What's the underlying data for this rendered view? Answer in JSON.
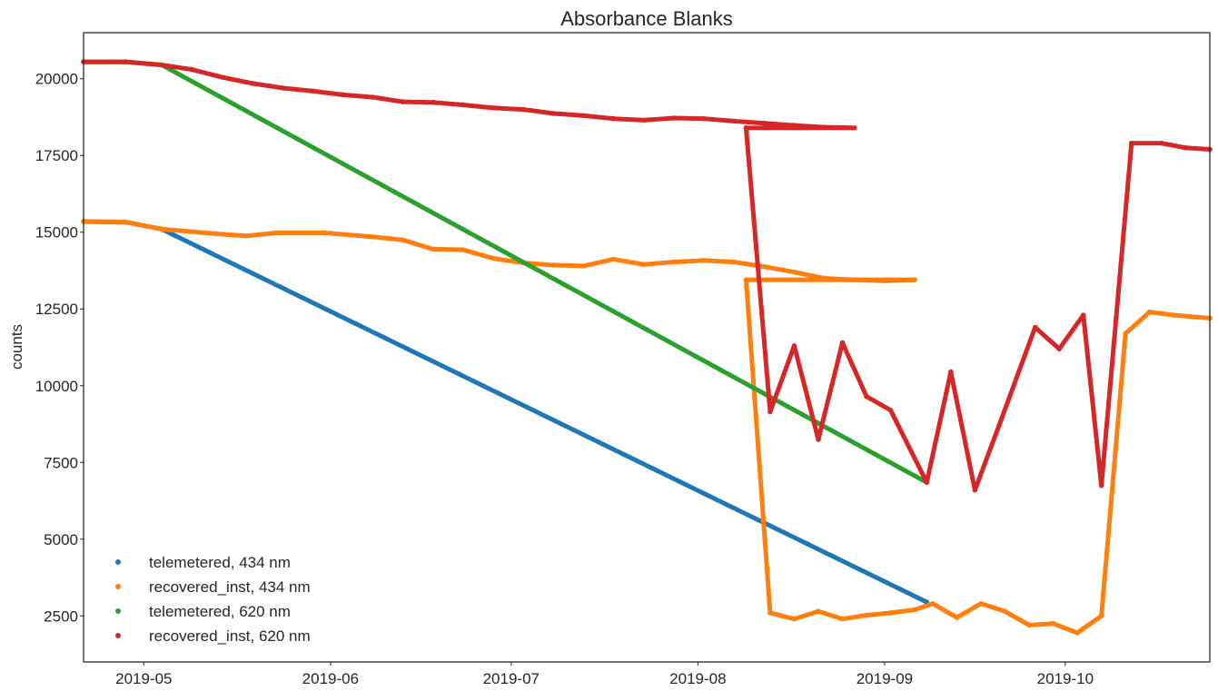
{
  "chart_data": {
    "type": "scatter",
    "title": "Absorbance Blanks",
    "xlabel": "",
    "ylabel": "counts",
    "x_axis_type": "date",
    "xlim": [
      "2019-04-21",
      "2019-10-25"
    ],
    "ylim": [
      1000,
      21500
    ],
    "x_tick_labels": [
      "2019-05",
      "2019-06",
      "2019-07",
      "2019-08",
      "2019-09",
      "2019-10"
    ],
    "x_tick_dates": [
      "2019-05-01",
      "2019-06-01",
      "2019-07-01",
      "2019-08-01",
      "2019-09-01",
      "2019-10-01"
    ],
    "y_ticks": [
      2500,
      5000,
      7500,
      10000,
      12500,
      15000,
      17500,
      20000
    ],
    "grid": false,
    "legend_position": "lower-left",
    "series": [
      {
        "name": "telemetered, 434 nm",
        "color": "#1f77b4",
        "points": [
          [
            "2019-04-21",
            15350
          ],
          [
            "2019-04-28",
            15330
          ],
          [
            "2019-05-04",
            15100
          ],
          [
            "2019-09-08",
            2950
          ]
        ]
      },
      {
        "name": "recovered_inst, 434 nm",
        "color": "#ff7f0e",
        "points": [
          [
            "2019-04-21",
            15350
          ],
          [
            "2019-04-28",
            15330
          ],
          [
            "2019-05-04",
            15100
          ],
          [
            "2019-05-13",
            14950
          ],
          [
            "2019-05-18",
            14880
          ],
          [
            "2019-05-23",
            14980
          ],
          [
            "2019-05-31",
            14980
          ],
          [
            "2019-06-08",
            14850
          ],
          [
            "2019-06-13",
            14750
          ],
          [
            "2019-06-18",
            14450
          ],
          [
            "2019-06-23",
            14430
          ],
          [
            "2019-06-28",
            14150
          ],
          [
            "2019-07-03",
            14000
          ],
          [
            "2019-07-08",
            13930
          ],
          [
            "2019-07-13",
            13900
          ],
          [
            "2019-07-18",
            14120
          ],
          [
            "2019-07-23",
            13950
          ],
          [
            "2019-07-28",
            14030
          ],
          [
            "2019-08-02",
            14080
          ],
          [
            "2019-08-07",
            14030
          ],
          [
            "2019-08-12",
            13880
          ],
          [
            "2019-08-17",
            13700
          ],
          [
            "2019-08-22",
            13500
          ],
          [
            "2019-08-27",
            13450
          ],
          [
            "2019-09-01",
            13420
          ],
          [
            "2019-09-06",
            13450
          ],
          [
            "2019-08-09",
            13450
          ],
          [
            "2019-08-13",
            2600
          ],
          [
            "2019-08-17",
            2400
          ],
          [
            "2019-08-21",
            2650
          ],
          [
            "2019-08-25",
            2400
          ],
          [
            "2019-08-29",
            2520
          ],
          [
            "2019-09-02",
            2600
          ],
          [
            "2019-09-06",
            2700
          ],
          [
            "2019-09-09",
            2900
          ],
          [
            "2019-09-13",
            2450
          ],
          [
            "2019-09-17",
            2900
          ],
          [
            "2019-09-21",
            2650
          ],
          [
            "2019-09-25",
            2200
          ],
          [
            "2019-09-29",
            2250
          ],
          [
            "2019-10-03",
            1950
          ],
          [
            "2019-10-07",
            2500
          ],
          [
            "2019-10-11",
            11700
          ],
          [
            "2019-10-15",
            12400
          ],
          [
            "2019-10-19",
            12300
          ],
          [
            "2019-10-25",
            12200
          ]
        ]
      },
      {
        "name": "telemetered, 620 nm",
        "color": "#2ca02c",
        "points": [
          [
            "2019-04-21",
            20550
          ],
          [
            "2019-04-28",
            20550
          ],
          [
            "2019-05-04",
            20450
          ],
          [
            "2019-09-08",
            6850
          ]
        ]
      },
      {
        "name": "recovered_inst, 620 nm",
        "color": "#d62728",
        "points": [
          [
            "2019-04-21",
            20550
          ],
          [
            "2019-04-28",
            20550
          ],
          [
            "2019-05-04",
            20450
          ],
          [
            "2019-05-09",
            20300
          ],
          [
            "2019-05-14",
            20050
          ],
          [
            "2019-05-19",
            19850
          ],
          [
            "2019-05-24",
            19700
          ],
          [
            "2019-05-29",
            19600
          ],
          [
            "2019-06-03",
            19480
          ],
          [
            "2019-06-08",
            19400
          ],
          [
            "2019-06-13",
            19250
          ],
          [
            "2019-06-18",
            19230
          ],
          [
            "2019-06-23",
            19150
          ],
          [
            "2019-06-28",
            19050
          ],
          [
            "2019-07-03",
            19000
          ],
          [
            "2019-07-08",
            18870
          ],
          [
            "2019-07-13",
            18800
          ],
          [
            "2019-07-18",
            18700
          ],
          [
            "2019-07-23",
            18650
          ],
          [
            "2019-07-28",
            18720
          ],
          [
            "2019-08-02",
            18700
          ],
          [
            "2019-08-07",
            18620
          ],
          [
            "2019-08-12",
            18550
          ],
          [
            "2019-08-17",
            18480
          ],
          [
            "2019-08-22",
            18420
          ],
          [
            "2019-08-27",
            18400
          ],
          [
            "2019-08-09",
            18400
          ],
          [
            "2019-08-13",
            9150
          ],
          [
            "2019-08-17",
            11300
          ],
          [
            "2019-08-21",
            8250
          ],
          [
            "2019-08-25",
            11400
          ],
          [
            "2019-08-29",
            9650
          ],
          [
            "2019-09-02",
            9200
          ],
          [
            "2019-09-08",
            6850
          ],
          [
            "2019-09-12",
            10450
          ],
          [
            "2019-09-16",
            6600
          ],
          [
            "2019-09-20",
            8700
          ],
          [
            "2019-09-26",
            11900
          ],
          [
            "2019-09-30",
            11200
          ],
          [
            "2019-10-04",
            12300
          ],
          [
            "2019-10-07",
            6750
          ],
          [
            "2019-10-12",
            17900
          ],
          [
            "2019-10-17",
            17900
          ],
          [
            "2019-10-21",
            17750
          ],
          [
            "2019-10-25",
            17700
          ]
        ]
      }
    ]
  }
}
